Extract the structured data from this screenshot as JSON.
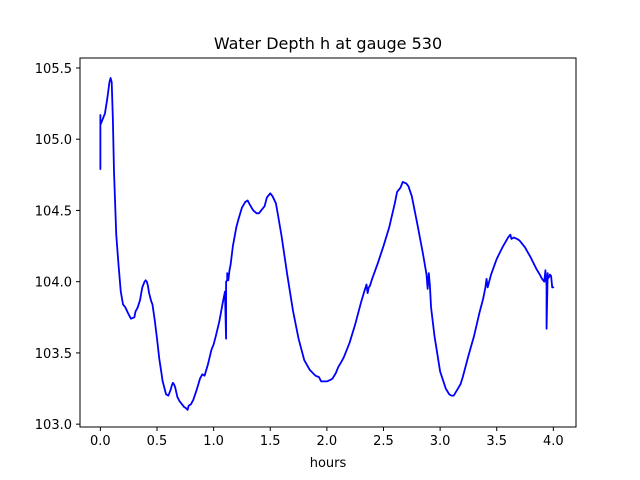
{
  "chart_data": {
    "type": "line",
    "title": "Water Depth h at gauge 530",
    "xlabel": "hours",
    "ylabel": "",
    "xlim": [
      -0.18,
      4.2
    ],
    "ylim": [
      102.98,
      105.57
    ],
    "xticks": [
      0.0,
      0.5,
      1.0,
      1.5,
      2.0,
      2.5,
      3.0,
      3.5,
      4.0
    ],
    "xtick_labels": [
      "0.0",
      "0.5",
      "1.0",
      "1.5",
      "2.0",
      "2.5",
      "3.0",
      "3.5",
      "4.0"
    ],
    "yticks": [
      103.0,
      103.5,
      104.0,
      104.5,
      105.0,
      105.5
    ],
    "ytick_labels": [
      "103.0",
      "103.5",
      "104.0",
      "104.5",
      "105.0",
      "105.5"
    ],
    "grid": false,
    "series": [
      {
        "color": "#0000ff",
        "x": [
          0.0,
          0.0,
          0.0,
          0.01,
          0.02,
          0.04,
          0.06,
          0.08,
          0.09,
          0.1,
          0.11,
          0.12,
          0.14,
          0.16,
          0.18,
          0.2,
          0.22,
          0.25,
          0.27,
          0.3,
          0.31,
          0.33,
          0.35,
          0.37,
          0.38,
          0.39,
          0.4,
          0.41,
          0.42,
          0.43,
          0.44,
          0.45,
          0.46,
          0.48,
          0.5,
          0.52,
          0.55,
          0.58,
          0.6,
          0.62,
          0.63,
          0.64,
          0.65,
          0.66,
          0.68,
          0.7,
          0.72,
          0.74,
          0.76,
          0.77,
          0.78,
          0.8,
          0.82,
          0.85,
          0.88,
          0.9,
          0.92,
          0.95,
          0.98,
          1.0,
          1.02,
          1.05,
          1.08,
          1.1,
          1.11,
          1.11,
          1.12,
          1.12,
          1.13,
          1.14,
          1.15,
          1.17,
          1.2,
          1.22,
          1.25,
          1.28,
          1.3,
          1.32,
          1.35,
          1.38,
          1.4,
          1.42,
          1.45,
          1.47,
          1.5,
          1.52,
          1.55,
          1.57,
          1.6,
          1.65,
          1.7,
          1.75,
          1.8,
          1.85,
          1.9,
          1.93,
          1.95,
          1.97,
          2.0,
          2.03,
          2.05,
          2.08,
          2.1,
          2.13,
          2.15,
          2.2,
          2.25,
          2.3,
          2.33,
          2.35,
          2.36,
          2.37,
          2.38,
          2.4,
          2.45,
          2.5,
          2.55,
          2.6,
          2.62,
          2.65,
          2.67,
          2.7,
          2.72,
          2.75,
          2.8,
          2.85,
          2.88,
          2.89,
          2.9,
          2.91,
          2.92,
          2.95,
          3.0,
          3.05,
          3.08,
          3.1,
          3.12,
          3.15,
          3.18,
          3.2,
          3.25,
          3.3,
          3.35,
          3.38,
          3.4,
          3.41,
          3.42,
          3.45,
          3.5,
          3.55,
          3.6,
          3.62,
          3.63,
          3.65,
          3.68,
          3.7,
          3.75,
          3.8,
          3.85,
          3.88,
          3.9,
          3.92,
          3.93,
          3.94,
          3.94,
          3.95,
          3.95,
          3.96,
          3.97,
          3.98,
          3.99,
          4.0
        ],
        "y": [
          104.79,
          105.17,
          105.1,
          105.12,
          105.14,
          105.18,
          105.28,
          105.4,
          105.43,
          105.4,
          105.15,
          104.78,
          104.33,
          104.12,
          103.93,
          103.84,
          103.82,
          103.77,
          103.74,
          103.75,
          103.79,
          103.82,
          103.87,
          103.96,
          103.98,
          104.0,
          104.01,
          104.0,
          103.97,
          103.92,
          103.89,
          103.86,
          103.84,
          103.73,
          103.6,
          103.46,
          103.3,
          103.21,
          103.2,
          103.24,
          103.27,
          103.29,
          103.28,
          103.26,
          103.19,
          103.16,
          103.14,
          103.12,
          103.11,
          103.1,
          103.13,
          103.14,
          103.17,
          103.24,
          103.32,
          103.35,
          103.34,
          103.42,
          103.52,
          103.56,
          103.62,
          103.72,
          103.85,
          103.93,
          103.6,
          104.0,
          104.01,
          104.06,
          104.01,
          104.08,
          104.12,
          104.25,
          104.38,
          104.44,
          104.52,
          104.56,
          104.57,
          104.54,
          104.5,
          104.48,
          104.48,
          104.5,
          104.53,
          104.59,
          104.62,
          104.6,
          104.55,
          104.46,
          104.32,
          104.05,
          103.8,
          103.6,
          103.45,
          103.38,
          103.34,
          103.33,
          103.3,
          103.3,
          103.3,
          103.31,
          103.32,
          103.36,
          103.4,
          103.44,
          103.47,
          103.57,
          103.7,
          103.85,
          103.93,
          103.98,
          103.92,
          103.96,
          103.97,
          104.02,
          104.13,
          104.25,
          104.38,
          104.55,
          104.63,
          104.66,
          104.7,
          104.69,
          104.67,
          104.6,
          104.4,
          104.19,
          104.05,
          103.95,
          104.06,
          103.97,
          103.82,
          103.62,
          103.37,
          103.25,
          103.21,
          103.2,
          103.2,
          103.24,
          103.28,
          103.33,
          103.48,
          103.62,
          103.79,
          103.88,
          103.96,
          104.02,
          103.96,
          104.05,
          104.16,
          104.24,
          104.31,
          104.33,
          104.3,
          104.31,
          104.3,
          104.29,
          104.24,
          104.17,
          104.09,
          104.05,
          104.02,
          104.0,
          104.08,
          103.97,
          103.67,
          104.06,
          104.02,
          104.03,
          104.05,
          104.04,
          103.96,
          103.96
        ]
      }
    ]
  }
}
